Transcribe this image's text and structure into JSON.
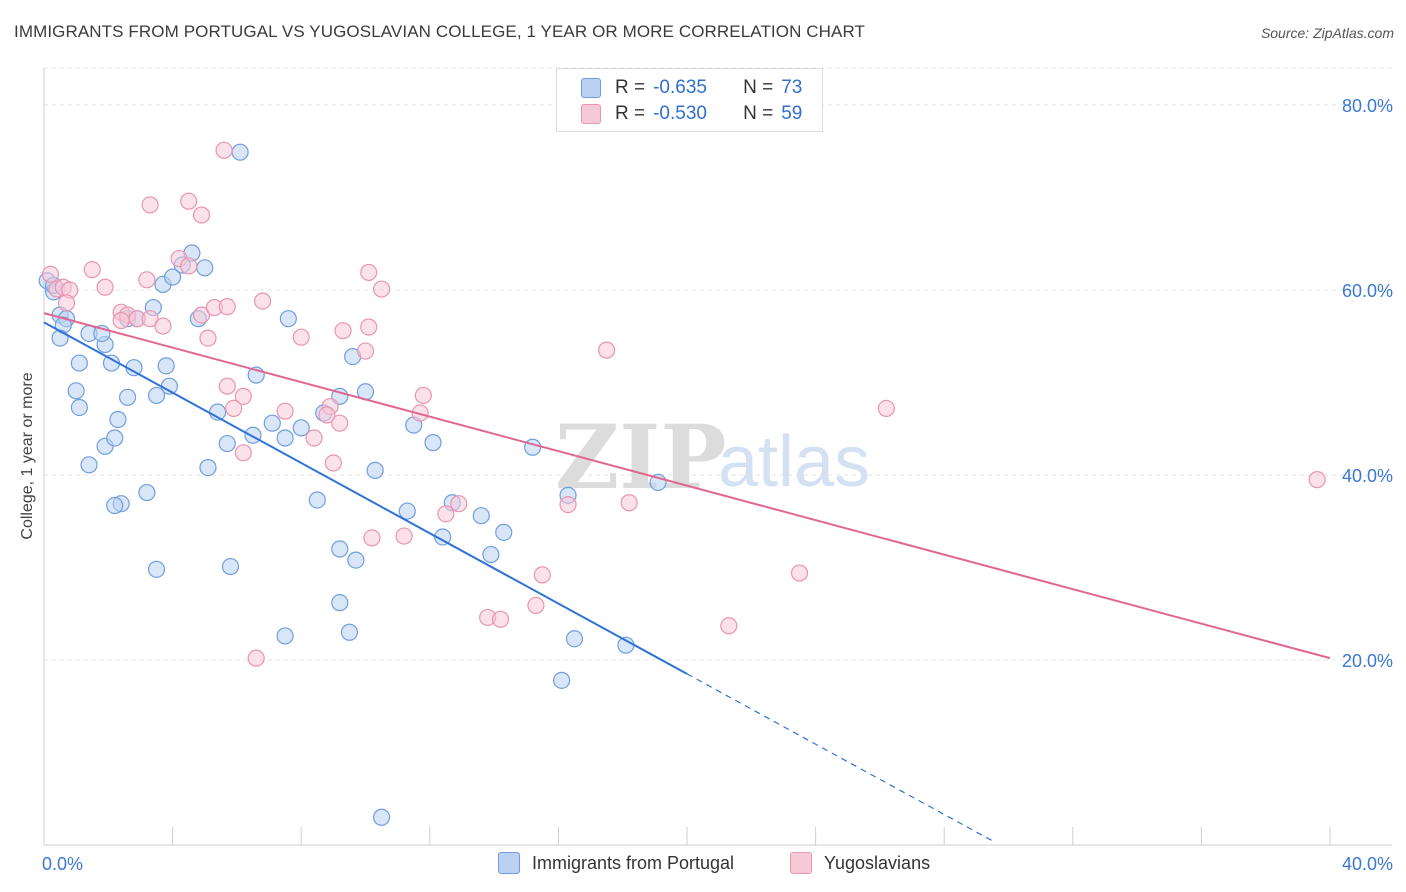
{
  "title": "IMMIGRANTS FROM PORTUGAL VS YUGOSLAVIAN COLLEGE, 1 YEAR OR MORE CORRELATION CHART",
  "source": "Source: ZipAtlas.com",
  "watermark": {
    "zip": "ZIP",
    "atlas": "atlas"
  },
  "legend_top": [
    {
      "r_label": "R =",
      "r_value": "-0.635",
      "n_label": "N =",
      "n_value": "73"
    },
    {
      "r_label": "R =",
      "r_value": "-0.530",
      "n_label": "N =",
      "n_value": "59"
    }
  ],
  "colors": {
    "blue_fill": "#b9d1f2",
    "blue_stroke": "#6f9ee0",
    "blue_line": "#2f72d6",
    "pink_fill": "#f7c9d7",
    "pink_stroke": "#e995b0",
    "pink_line": "#e0688f",
    "grid": "#e3e3e3",
    "tick_text": "#3a78d4"
  },
  "chart_data": {
    "type": "scatter",
    "title": "IMMIGRANTS FROM PORTUGAL VS YUGOSLAVIAN COLLEGE, 1 YEAR OR MORE CORRELATION CHART",
    "xlabel": "",
    "ylabel": "College, 1 year or more",
    "xlim": [
      0,
      40
    ],
    "ylim": [
      0,
      84
    ],
    "x_ticks": [
      "0.0%",
      "40.0%"
    ],
    "y_ticks": [
      {
        "value": 20,
        "label": "20.0%"
      },
      {
        "value": 40,
        "label": "40.0%"
      },
      {
        "value": 60,
        "label": "60.0%"
      },
      {
        "value": 80,
        "label": "80.0%"
      }
    ],
    "grid": true,
    "legend_position": "bottom-center",
    "series": [
      {
        "name": "Immigrants from Portugal",
        "color": "blue",
        "r": -0.635,
        "n": 73,
        "trend": {
          "x0": 0,
          "y0": 56.5,
          "x1": 20,
          "y1": 18.5,
          "dashed_to_x": 29.6
        },
        "points": [
          [
            0.1,
            61.0
          ],
          [
            0.3,
            59.8
          ],
          [
            0.3,
            60.5
          ],
          [
            0.5,
            57.3
          ],
          [
            0.7,
            56.9
          ],
          [
            0.6,
            56.2
          ],
          [
            1.9,
            54.1
          ],
          [
            1.4,
            55.3
          ],
          [
            1.8,
            55.3
          ],
          [
            2.1,
            52.1
          ],
          [
            2.6,
            56.9
          ],
          [
            2.9,
            56.9
          ],
          [
            0.5,
            54.8
          ],
          [
            1.1,
            52.1
          ],
          [
            1.0,
            49.1
          ],
          [
            1.1,
            47.3
          ],
          [
            1.4,
            41.1
          ],
          [
            1.9,
            43.1
          ],
          [
            2.2,
            44.0
          ],
          [
            2.3,
            46.0
          ],
          [
            2.6,
            48.4
          ],
          [
            2.8,
            51.6
          ],
          [
            3.5,
            48.6
          ],
          [
            3.8,
            51.8
          ],
          [
            3.9,
            49.6
          ],
          [
            3.4,
            58.1
          ],
          [
            3.7,
            60.6
          ],
          [
            4.0,
            61.4
          ],
          [
            4.3,
            62.7
          ],
          [
            4.6,
            64.0
          ],
          [
            5.0,
            62.4
          ],
          [
            4.8,
            56.9
          ],
          [
            5.4,
            46.8
          ],
          [
            5.7,
            43.4
          ],
          [
            6.6,
            50.8
          ],
          [
            7.1,
            45.6
          ],
          [
            7.5,
            44.0
          ],
          [
            7.6,
            56.9
          ],
          [
            8.0,
            45.1
          ],
          [
            8.7,
            46.7
          ],
          [
            9.2,
            48.5
          ],
          [
            9.6,
            52.8
          ],
          [
            10.0,
            49.0
          ],
          [
            8.5,
            37.3
          ],
          [
            5.1,
            40.8
          ],
          [
            2.4,
            36.9
          ],
          [
            3.2,
            38.1
          ],
          [
            3.5,
            29.8
          ],
          [
            5.8,
            30.1
          ],
          [
            7.5,
            22.6
          ],
          [
            9.2,
            26.2
          ],
          [
            9.5,
            23.0
          ],
          [
            11.5,
            45.4
          ],
          [
            12.1,
            43.5
          ],
          [
            11.3,
            36.1
          ],
          [
            12.4,
            33.3
          ],
          [
            12.7,
            37.0
          ],
          [
            13.6,
            35.6
          ],
          [
            13.9,
            31.4
          ],
          [
            14.3,
            33.8
          ],
          [
            15.2,
            43.0
          ],
          [
            16.3,
            37.8
          ],
          [
            16.1,
            17.8
          ],
          [
            16.5,
            22.3
          ],
          [
            19.1,
            39.2
          ],
          [
            18.1,
            21.6
          ],
          [
            6.1,
            74.9
          ],
          [
            10.3,
            40.5
          ],
          [
            9.2,
            32.0
          ],
          [
            9.7,
            30.8
          ],
          [
            10.5,
            3.0
          ],
          [
            6.5,
            44.3
          ],
          [
            2.2,
            36.7
          ]
        ]
      },
      {
        "name": "Yugoslavians",
        "color": "pink",
        "r": -0.53,
        "n": 59,
        "trend": {
          "x0": 0,
          "y0": 57.5,
          "x1": 40,
          "y1": 20.2
        },
        "points": [
          [
            0.2,
            61.7
          ],
          [
            0.4,
            60.1
          ],
          [
            0.6,
            60.3
          ],
          [
            0.8,
            60.0
          ],
          [
            0.7,
            58.6
          ],
          [
            1.5,
            62.2
          ],
          [
            1.9,
            60.3
          ],
          [
            2.4,
            57.6
          ],
          [
            2.6,
            57.3
          ],
          [
            2.4,
            56.7
          ],
          [
            2.9,
            56.9
          ],
          [
            3.2,
            61.1
          ],
          [
            3.3,
            56.9
          ],
          [
            3.7,
            56.1
          ],
          [
            4.2,
            63.4
          ],
          [
            4.5,
            62.6
          ],
          [
            4.9,
            57.3
          ],
          [
            5.1,
            54.8
          ],
          [
            5.3,
            58.1
          ],
          [
            5.7,
            58.2
          ],
          [
            6.8,
            58.8
          ],
          [
            6.2,
            48.5
          ],
          [
            5.7,
            49.6
          ],
          [
            5.9,
            47.2
          ],
          [
            6.2,
            42.4
          ],
          [
            7.5,
            46.9
          ],
          [
            8.0,
            54.9
          ],
          [
            8.4,
            44.0
          ],
          [
            8.9,
            47.4
          ],
          [
            8.8,
            46.5
          ],
          [
            9.2,
            45.6
          ],
          [
            9.0,
            41.3
          ],
          [
            10.0,
            53.4
          ],
          [
            10.1,
            56.0
          ],
          [
            10.1,
            61.9
          ],
          [
            10.5,
            60.1
          ],
          [
            9.3,
            55.6
          ],
          [
            10.2,
            33.2
          ],
          [
            11.2,
            33.4
          ],
          [
            11.8,
            48.6
          ],
          [
            11.7,
            46.7
          ],
          [
            12.5,
            35.8
          ],
          [
            12.9,
            36.9
          ],
          [
            13.8,
            24.6
          ],
          [
            14.2,
            24.4
          ],
          [
            15.3,
            25.9
          ],
          [
            15.5,
            29.2
          ],
          [
            16.3,
            36.8
          ],
          [
            17.5,
            53.5
          ],
          [
            18.2,
            37.0
          ],
          [
            21.3,
            23.7
          ],
          [
            23.5,
            29.4
          ],
          [
            26.2,
            47.2
          ],
          [
            39.6,
            39.5
          ],
          [
            3.3,
            69.2
          ],
          [
            4.5,
            69.6
          ],
          [
            4.9,
            68.1
          ],
          [
            5.6,
            75.1
          ],
          [
            6.6,
            20.2
          ]
        ]
      }
    ]
  },
  "legend_bottom": [
    {
      "label": "Immigrants from Portugal",
      "color": "blue"
    },
    {
      "label": "Yugoslavians",
      "color": "pink"
    }
  ]
}
